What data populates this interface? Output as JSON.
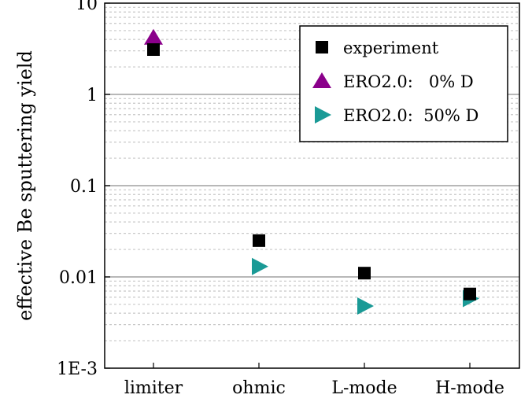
{
  "chart_data": {
    "type": "scatter",
    "categories": [
      "limiter",
      "ohmic",
      "L-mode",
      "H-mode"
    ],
    "ylabel": "effective Be sputtering yield",
    "xlabel": "",
    "yscale": "log",
    "ylim": [
      0.001,
      10
    ],
    "yticks": [
      {
        "value": 10,
        "label": "10"
      },
      {
        "value": 1,
        "label": "1"
      },
      {
        "value": 0.1,
        "label": "0.1"
      },
      {
        "value": 0.01,
        "label": "0.01"
      },
      {
        "value": 0.001,
        "label": "1E-3"
      }
    ],
    "grid": true,
    "legend_position": "top-right",
    "series": [
      {
        "name": "experiment",
        "marker": "square",
        "color": "#000000",
        "values": [
          3.1,
          0.025,
          0.011,
          0.0065
        ]
      },
      {
        "name": "ERO2.0:   0% D",
        "marker": "triangle-up",
        "color": "#8b008b",
        "values": [
          4.2,
          null,
          null,
          null
        ]
      },
      {
        "name": "ERO2.0:  50% D",
        "marker": "triangle-right",
        "color": "#1a9a96",
        "values": [
          null,
          0.013,
          0.0048,
          0.0058
        ]
      }
    ]
  }
}
